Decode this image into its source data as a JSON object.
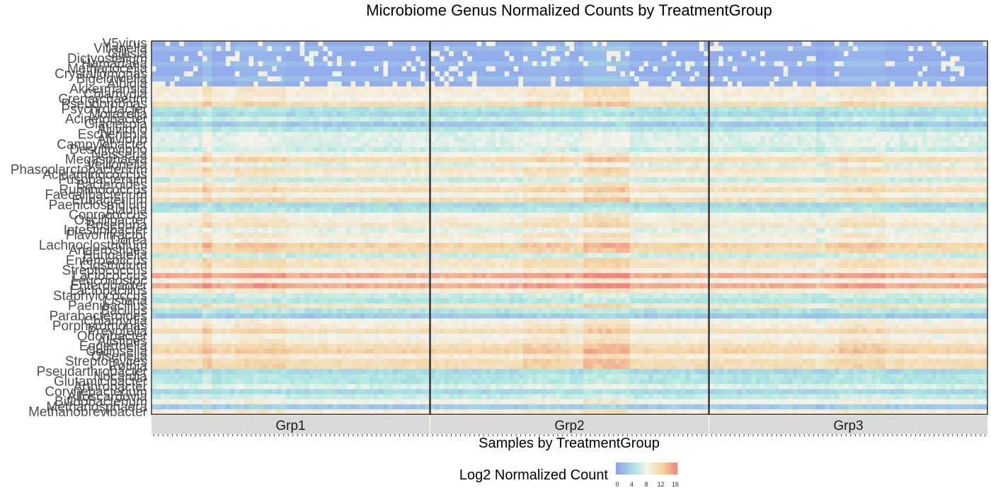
{
  "chart_data": {
    "type": "heatmap",
    "title": "Microbiome Genus Normalized Counts by TreatmentGroup",
    "xlabel": "Samples by TreatmentGroup",
    "ylabel": "",
    "facets": [
      "Grp1",
      "Grp2",
      "Grp3"
    ],
    "samples_per_facet": 60,
    "genera": [
      "V5virus",
      "Villanella",
      "Gillisia",
      "Dictyostelium",
      "Hamadaea",
      "Methanocella",
      "Crystallomonas",
      "Bigelowiella",
      "Albidia",
      "Akkermansia",
      "Chlamydia",
      "Crenarchaeum",
      "Pseudomonas",
      "Psychrobacter",
      "Moraxella",
      "Acinetobacter",
      "Glaciecola",
      "Aliivibrio",
      "Escherichia",
      "Aliivibrio",
      "Campylobacter",
      "Desulfovibrio",
      "Neisseria",
      "Megasphaera",
      "Veillonella",
      "Phascolarctobacterium",
      "Acidaminococcus",
      "Fusobacterium",
      "Bacteroides",
      "Ruminococcus",
      "Faecalibacterium",
      "Eubacterium",
      "Paeniclostridium",
      "Blautia",
      "Coprococcus",
      "Oscillibacter",
      "Roseburia",
      "Intestinibacter",
      "Flavonifractor",
      "Dorea",
      "Lachnoclostridium",
      "Anaerostipes",
      "Hungatella",
      "Enterococcus",
      "Clostridium",
      "Streptococcus",
      "Lactococcus",
      "Leuconostoc",
      "Enterobacter",
      "Lactobacillus",
      "Staphylococcus",
      "Listeria",
      "Paenibacillus",
      "Bacillus",
      "Parabacteroides",
      "Chlamydia",
      "Porphyromonas",
      "Prevotella",
      "Odoribacter",
      "Alistipes",
      "Eggerthella",
      "Collinsella",
      "Olsenella",
      "Streptomyces",
      "Rothia",
      "Pseudarthrobacter",
      "Nocardia",
      "Glutamicibacter",
      "Arthrobacter",
      "Corynebacterium",
      "Alloscardovia",
      "Bifidobacterium",
      "Methanosphaera",
      "Methanobrevibacter"
    ],
    "row_profiles": [
      1,
      2,
      1,
      1,
      2,
      1,
      1,
      2,
      1,
      9,
      9,
      8,
      11,
      5,
      4,
      6,
      3,
      5,
      7,
      7,
      7,
      6,
      8,
      11,
      7,
      10,
      9,
      6,
      9,
      11,
      8,
      11,
      4,
      5,
      8,
      9,
      10,
      7,
      9,
      8,
      12,
      11,
      6,
      10,
      10,
      8,
      14,
      8,
      14,
      9,
      6,
      5,
      10,
      5,
      3,
      8,
      9,
      11,
      8,
      9,
      11,
      12,
      9,
      11,
      11,
      4,
      5,
      5,
      7,
      4,
      6,
      8,
      3,
      9
    ],
    "feature_cols": [
      {
        "facet": 0,
        "cols": [
          11,
          12
        ],
        "delta": 2
      },
      {
        "facet": 0,
        "cols": [
          18,
          19,
          20,
          21,
          22,
          23,
          24,
          25,
          26,
          27,
          28
        ],
        "delta": 1
      },
      {
        "facet": 1,
        "cols": [
          20,
          21,
          22,
          23,
          24,
          25,
          26,
          27,
          28,
          29
        ],
        "delta": 1
      },
      {
        "facet": 1,
        "cols": [
          33,
          34,
          35,
          36,
          37,
          38,
          39,
          40,
          41,
          42
        ],
        "delta": 2
      },
      {
        "facet": 2,
        "cols": [
          23,
          24
        ],
        "delta": -1
      },
      {
        "facet": 2,
        "cols": [
          28,
          29,
          30,
          31,
          32,
          33,
          34,
          35,
          36,
          37
        ],
        "delta": 1
      }
    ],
    "color_scale": {
      "label": "Log2 Normalized Count",
      "min": 0,
      "max": 16,
      "ticks": [
        0,
        4,
        8,
        12,
        16
      ],
      "stops": [
        {
          "v": 0,
          "c": "#8c9eef"
        },
        {
          "v": 5,
          "c": "#aee7e0"
        },
        {
          "v": 8,
          "c": "#f5f3ea"
        },
        {
          "v": 12,
          "c": "#f3d6a6"
        },
        {
          "v": 16,
          "c": "#f2827a"
        }
      ]
    },
    "legend_position": "bottom",
    "strip_fill": "#d9d9d9"
  }
}
